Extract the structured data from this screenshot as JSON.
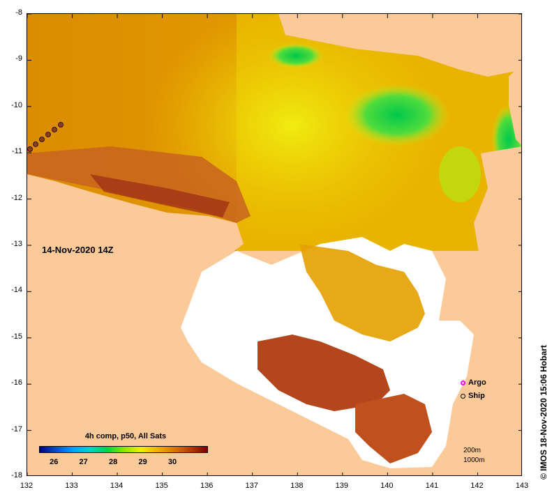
{
  "map": {
    "date_label": "14-Nov-2020 14Z",
    "lat_labels": [
      "-8",
      "-9",
      "-10",
      "-11",
      "-12",
      "-13",
      "-14",
      "-15",
      "-16",
      "-17",
      "-18"
    ],
    "lon_labels": [
      "132",
      "133",
      "134",
      "135",
      "136",
      "137",
      "138",
      "139",
      "140",
      "141",
      "142",
      "143"
    ],
    "land_color": "#fcc998",
    "cloud_color": "#ffffff"
  },
  "colorbar": {
    "title": "4h comp, p50, All Sats",
    "ticks": [
      "26",
      "27",
      "28",
      "29",
      "30"
    ],
    "range_c": [
      25.5,
      31.2
    ],
    "colors": [
      "#000080",
      "#0050c8",
      "#00a0ff",
      "#00d2c8",
      "#00d24b",
      "#8ce600",
      "#f0f000",
      "#f0b400",
      "#dc7800",
      "#b43c00",
      "#780000"
    ]
  },
  "legend": {
    "argo_label": "Argo",
    "argo_color": "#ff00ff",
    "ship_label": "Ship",
    "ship_color": "#000000"
  },
  "scale": {
    "line1": "200m",
    "line2": "1000m"
  },
  "credit": "© IMOS 18-Nov-2020 15:06 Hobart"
}
